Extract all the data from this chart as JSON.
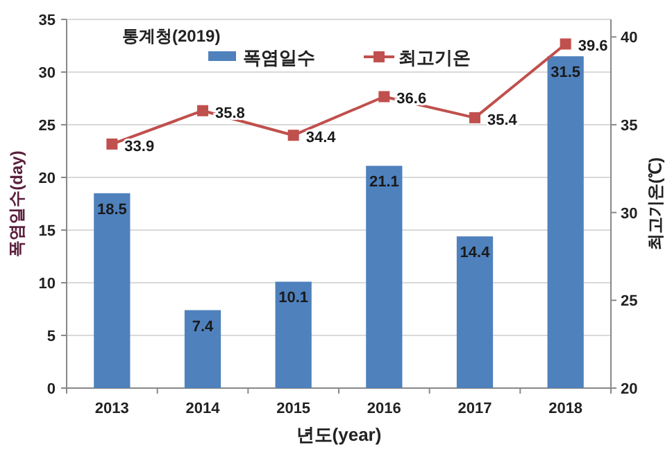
{
  "chart_data": {
    "type": "bar",
    "categories": [
      "2013",
      "2014",
      "2015",
      "2016",
      "2017",
      "2018"
    ],
    "xlabel": "년도(year)",
    "ylabel": "폭염일수(day)",
    "y2label": "최고기온(℃)",
    "annotations": [
      "통계청(2019)"
    ],
    "series": [
      {
        "name": "폭염일수",
        "color": "#4f81bd",
        "values": [
          18.5,
          7.4,
          10.1,
          21.1,
          14.4,
          31.5
        ]
      },
      {
        "name": "최고기온",
        "type": "line",
        "axis": "y2",
        "color": "#c0504d",
        "marker": "square",
        "values": [
          33.9,
          35.8,
          34.4,
          36.6,
          35.4,
          39.6
        ]
      }
    ],
    "ylim": [
      0,
      35
    ],
    "yticks": [
      0,
      5,
      10,
      15,
      20,
      25,
      30,
      35
    ],
    "y2lim": [
      20,
      41
    ],
    "y2ticks": [
      20,
      25,
      30,
      35,
      40
    ],
    "grid": "y",
    "legend": "top",
    "data_labels": true
  }
}
